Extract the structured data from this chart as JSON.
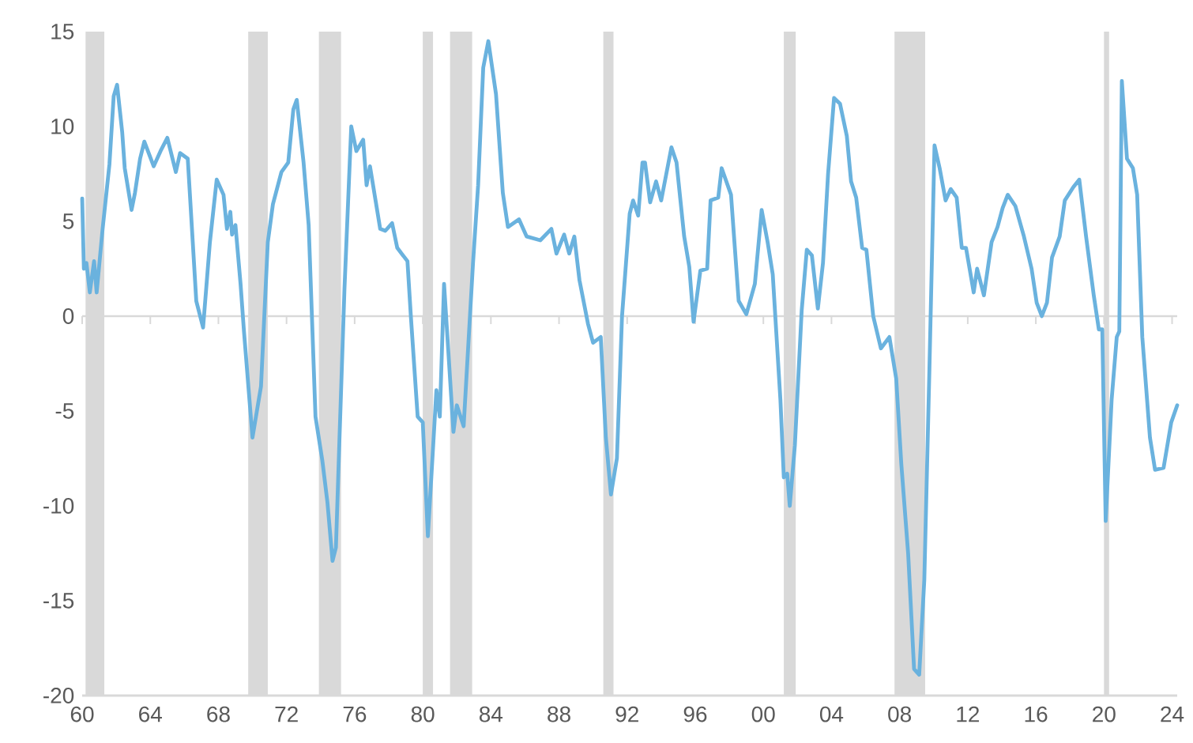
{
  "chart_data": {
    "type": "line",
    "series": [
      {
        "color": "#6ab2de",
        "x": [
          1960.0,
          1960.1,
          1960.25,
          1960.45,
          1960.7,
          1960.85,
          1961.2,
          1961.6,
          1961.85,
          1962.05,
          1962.35,
          1962.5,
          1962.9,
          1963.1,
          1963.4,
          1963.65,
          1964.2,
          1964.6,
          1965.0,
          1965.5,
          1965.75,
          1966.2,
          1966.7,
          1967.1,
          1967.5,
          1967.9,
          1968.3,
          1968.5,
          1968.7,
          1968.8,
          1969.0,
          1969.3,
          1969.5,
          1970.0,
          1970.5,
          1970.9,
          1971.2,
          1971.7,
          1972.1,
          1972.4,
          1972.6,
          1973.0,
          1973.3,
          1973.7,
          1974.1,
          1974.4,
          1974.7,
          1974.9,
          1975.1,
          1975.4,
          1975.8,
          1976.1,
          1976.5,
          1976.7,
          1976.9,
          1977.5,
          1977.8,
          1978.2,
          1978.5,
          1979.1,
          1979.3,
          1979.7,
          1980.0,
          1980.3,
          1980.8,
          1981.0,
          1981.25,
          1981.8,
          1982.0,
          1982.4,
          1982.95,
          1983.25,
          1983.55,
          1983.85,
          1984.3,
          1984.7,
          1985.0,
          1985.65,
          1986.1,
          1986.9,
          1987.55,
          1987.85,
          1988.3,
          1988.6,
          1988.9,
          1989.2,
          1989.7,
          1990.0,
          1990.45,
          1990.75,
          1991.05,
          1991.4,
          1991.7,
          1992.15,
          1992.35,
          1992.65,
          1992.9,
          1993.05,
          1993.35,
          1993.7,
          1994.0,
          1994.6,
          1994.9,
          1995.35,
          1995.65,
          1995.9,
          1996.3,
          1996.7,
          1996.9,
          1997.35,
          1997.55,
          1998.1,
          1998.55,
          1999.0,
          1999.5,
          1999.9,
          2000.25,
          2000.55,
          2001.0,
          2001.2,
          2001.4,
          2001.55,
          2001.85,
          2002.25,
          2002.55,
          2002.85,
          2003.2,
          2003.5,
          2003.8,
          2004.15,
          2004.5,
          2004.9,
          2005.15,
          2005.45,
          2005.8,
          2006.05,
          2006.45,
          2006.9,
          2007.4,
          2007.8,
          2008.1,
          2008.5,
          2008.85,
          2009.15,
          2009.45,
          2009.75,
          2010.05,
          2010.35,
          2010.7,
          2011.0,
          2011.35,
          2011.65,
          2011.9,
          2012.35,
          2012.55,
          2012.95,
          2013.4,
          2013.75,
          2014.05,
          2014.35,
          2014.8,
          2015.3,
          2015.75,
          2016.05,
          2016.35,
          2016.65,
          2016.95,
          2017.4,
          2017.7,
          2018.2,
          2018.55,
          2018.95,
          2019.4,
          2019.7,
          2019.9,
          2020.1,
          2020.45,
          2020.75,
          2020.9,
          2021.05,
          2021.35,
          2021.7,
          2021.95,
          2022.25,
          2022.7,
          2023.0,
          2023.5,
          2023.95,
          2024.3
        ],
        "values": [
          6.2,
          2.5,
          2.8,
          1.25,
          2.9,
          1.25,
          4.6,
          8.0,
          11.6,
          12.2,
          9.7,
          7.8,
          5.6,
          6.5,
          8.3,
          9.2,
          7.9,
          8.7,
          9.4,
          7.6,
          8.6,
          8.3,
          0.8,
          -0.6,
          3.9,
          7.2,
          6.4,
          4.6,
          5.5,
          4.3,
          4.8,
          1.7,
          -0.8,
          -6.4,
          -3.7,
          3.9,
          5.9,
          7.6,
          8.1,
          10.9,
          11.4,
          8.1,
          4.8,
          -5.3,
          -7.6,
          -9.8,
          -12.9,
          -12.2,
          -6.7,
          1.4,
          10.0,
          8.7,
          9.3,
          6.9,
          7.9,
          4.6,
          4.5,
          4.9,
          3.6,
          2.9,
          0.0,
          -5.3,
          -5.6,
          -11.6,
          -3.9,
          -5.3,
          1.7,
          -6.1,
          -4.7,
          -5.8,
          2.8,
          6.9,
          13.1,
          14.5,
          11.7,
          6.5,
          4.7,
          5.1,
          4.2,
          4.0,
          4.6,
          3.3,
          4.3,
          3.3,
          4.2,
          1.9,
          -0.4,
          -1.4,
          -1.1,
          -6.4,
          -9.4,
          -7.5,
          0.0,
          5.4,
          6.1,
          5.3,
          8.1,
          8.1,
          6.0,
          7.1,
          6.1,
          8.9,
          8.1,
          4.2,
          2.6,
          -0.3,
          2.4,
          2.5,
          6.1,
          6.25,
          7.8,
          6.4,
          0.8,
          0.1,
          1.7,
          5.6,
          3.9,
          2.2,
          -4.4,
          -8.5,
          -8.3,
          -10.0,
          -6.8,
          0.3,
          3.5,
          3.2,
          0.4,
          2.8,
          7.5,
          11.5,
          11.2,
          9.5,
          7.1,
          6.25,
          3.6,
          3.5,
          0.0,
          -1.7,
          -1.1,
          -3.3,
          -7.8,
          -12.5,
          -18.6,
          -18.9,
          -13.9,
          -2.8,
          9.0,
          7.8,
          6.1,
          6.7,
          6.25,
          3.6,
          3.6,
          1.25,
          2.5,
          1.1,
          3.9,
          4.7,
          5.7,
          6.4,
          5.8,
          4.2,
          2.5,
          0.7,
          0.0,
          0.7,
          3.1,
          4.2,
          6.1,
          6.8,
          7.2,
          4.2,
          1.1,
          -0.7,
          -0.7,
          -10.8,
          -4.4,
          -1.1,
          -0.8,
          12.4,
          8.3,
          7.8,
          6.4,
          -1.1,
          -6.4,
          -8.1,
          -8.0,
          -5.6,
          -4.7
        ]
      }
    ],
    "xlim": [
      1960,
      2024.3
    ],
    "xticks": [
      {
        "value": 1960,
        "label": "60"
      },
      {
        "value": 1964,
        "label": "64"
      },
      {
        "value": 1968,
        "label": "68"
      },
      {
        "value": 1972,
        "label": "72"
      },
      {
        "value": 1976,
        "label": "76"
      },
      {
        "value": 1980,
        "label": "80"
      },
      {
        "value": 1984,
        "label": "84"
      },
      {
        "value": 1988,
        "label": "88"
      },
      {
        "value": 1992,
        "label": "92"
      },
      {
        "value": 1996,
        "label": "96"
      },
      {
        "value": 2000,
        "label": "00"
      },
      {
        "value": 2004,
        "label": "04"
      },
      {
        "value": 2008,
        "label": "08"
      },
      {
        "value": 2012,
        "label": "12"
      },
      {
        "value": 2016,
        "label": "16"
      },
      {
        "value": 2020,
        "label": "20"
      },
      {
        "value": 2024,
        "label": "24"
      }
    ],
    "ylim": [
      -20,
      15
    ],
    "yticks": [
      -20,
      -15,
      -10,
      -5,
      0,
      5,
      10,
      15
    ],
    "marker": "none",
    "line_style": "solid",
    "bands": [
      {
        "axis": "x",
        "from": 1960.2,
        "to": 1961.3,
        "color": "#d9d9d9"
      },
      {
        "axis": "x",
        "from": 1969.75,
        "to": 1970.9,
        "color": "#d9d9d9"
      },
      {
        "axis": "x",
        "from": 1973.9,
        "to": 1975.2,
        "color": "#d9d9d9"
      },
      {
        "axis": "x",
        "from": 1980.0,
        "to": 1980.6,
        "color": "#d9d9d9"
      },
      {
        "axis": "x",
        "from": 1981.6,
        "to": 1982.9,
        "color": "#d9d9d9"
      },
      {
        "axis": "x",
        "from": 1990.6,
        "to": 1991.2,
        "color": "#d9d9d9"
      },
      {
        "axis": "x",
        "from": 2001.2,
        "to": 2001.9,
        "color": "#d9d9d9"
      },
      {
        "axis": "x",
        "from": 2007.7,
        "to": 2009.5,
        "color": "#d9d9d9"
      },
      {
        "axis": "x",
        "from": 2020.0,
        "to": 2020.3,
        "color": "#d9d9d9"
      }
    ]
  }
}
